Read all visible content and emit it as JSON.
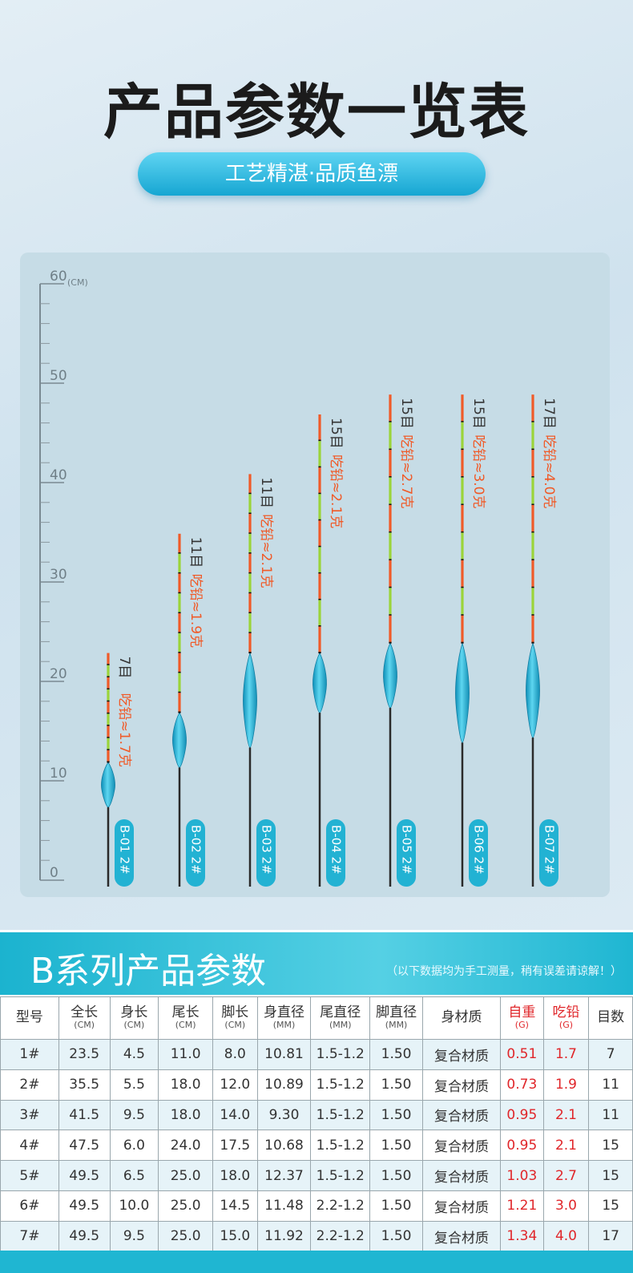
{
  "header": {
    "title": "产品参数一览表",
    "subtitle": "工艺精湛·品质鱼漂"
  },
  "ruler": {
    "unit": "(CM)",
    "ticks": [
      0,
      10,
      20,
      30,
      40,
      50,
      60
    ],
    "floats": [
      {
        "label": "B-01 2#",
        "mesh": "7目",
        "lead": "吃铅≈1.7克"
      },
      {
        "label": "B-02 2#",
        "mesh": "11目",
        "lead": "吃铅≈1.9克"
      },
      {
        "label": "B-03 2#",
        "mesh": "11目",
        "lead": "吃铅≈2.1克"
      },
      {
        "label": "B-04 2#",
        "mesh": "15目",
        "lead": "吃铅≈2.1克"
      },
      {
        "label": "B-05 2#",
        "mesh": "15目",
        "lead": "吃铅≈2.7克"
      },
      {
        "label": "B-06 2#",
        "mesh": "15目",
        "lead": "吃铅≈3.0克"
      },
      {
        "label": "B-07 2#",
        "mesh": "17目",
        "lead": "吃铅≈4.0克"
      }
    ]
  },
  "table": {
    "title": "B系列产品参数",
    "note": "（以下数据均为手工测量，稍有误差请谅解！）",
    "columns": [
      {
        "name": "型号"
      },
      {
        "name": "全长",
        "unit": "(CM)"
      },
      {
        "name": "身长",
        "unit": "(CM)"
      },
      {
        "name": "尾长",
        "unit": "(CM)"
      },
      {
        "name": "脚长",
        "unit": "(CM)"
      },
      {
        "name": "身直径",
        "unit": "(MM)"
      },
      {
        "name": "尾直径",
        "unit": "(MM)"
      },
      {
        "name": "脚直径",
        "unit": "(MM)"
      },
      {
        "name": "身材质"
      },
      {
        "name": "自重",
        "unit": "(G)"
      },
      {
        "name": "吃铅",
        "unit": "(G)"
      },
      {
        "name": "目数"
      }
    ],
    "rows": [
      [
        "1#",
        "23.5",
        "4.5",
        "11.0",
        "8.0",
        "10.81",
        "1.5-1.2",
        "1.50",
        "复合材质",
        "0.51",
        "1.7",
        "7"
      ],
      [
        "2#",
        "35.5",
        "5.5",
        "18.0",
        "12.0",
        "10.89",
        "1.5-1.2",
        "1.50",
        "复合材质",
        "0.73",
        "1.9",
        "11"
      ],
      [
        "3#",
        "41.5",
        "9.5",
        "18.0",
        "14.0",
        "9.30",
        "1.5-1.2",
        "1.50",
        "复合材质",
        "0.95",
        "2.1",
        "11"
      ],
      [
        "4#",
        "47.5",
        "6.0",
        "24.0",
        "17.5",
        "10.68",
        "1.5-1.2",
        "1.50",
        "复合材质",
        "0.95",
        "2.1",
        "15"
      ],
      [
        "5#",
        "49.5",
        "6.5",
        "25.0",
        "18.0",
        "12.37",
        "1.5-1.2",
        "1.50",
        "复合材质",
        "1.03",
        "2.7",
        "15"
      ],
      [
        "6#",
        "49.5",
        "10.0",
        "25.0",
        "14.5",
        "11.48",
        "2.2-1.2",
        "1.50",
        "复合材质",
        "1.21",
        "3.0",
        "15"
      ],
      [
        "7#",
        "49.5",
        "9.5",
        "25.0",
        "15.0",
        "11.92",
        "2.2-1.2",
        "1.50",
        "复合材质",
        "1.34",
        "4.0",
        "17"
      ]
    ]
  }
}
